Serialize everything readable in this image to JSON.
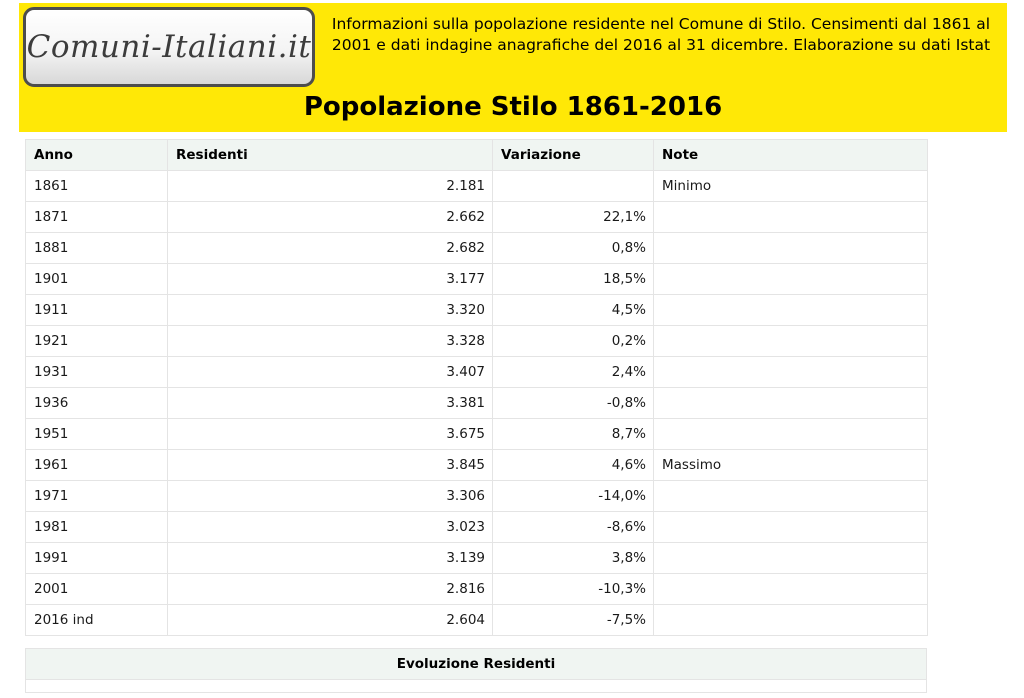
{
  "logo": {
    "text": "Comuni-Italiani.it"
  },
  "banner": {
    "info_text": "Informazioni sulla popolazione residente nel Comune di Stilo. Censimenti dal 1861 al 2001 e dati indagine anagrafiche del 2016 al 31 dicembre. Elaborazione su dati Istat"
  },
  "page_title": "Popolazione Stilo 1861-2016",
  "colors": {
    "banner_bg": "#ffe806",
    "table_header_bg": "#f0f5f2",
    "table_border": "#e4e4e4",
    "text": "#1a1a1a"
  },
  "table": {
    "headers": {
      "anno": "Anno",
      "residenti": "Residenti",
      "variazione": "Variazione",
      "note": "Note"
    },
    "rows": [
      {
        "anno": "1861",
        "residenti": "2.181",
        "variazione": "",
        "note": "Minimo"
      },
      {
        "anno": "1871",
        "residenti": "2.662",
        "variazione": "22,1%",
        "note": ""
      },
      {
        "anno": "1881",
        "residenti": "2.682",
        "variazione": "0,8%",
        "note": ""
      },
      {
        "anno": "1901",
        "residenti": "3.177",
        "variazione": "18,5%",
        "note": ""
      },
      {
        "anno": "1911",
        "residenti": "3.320",
        "variazione": "4,5%",
        "note": ""
      },
      {
        "anno": "1921",
        "residenti": "3.328",
        "variazione": "0,2%",
        "note": ""
      },
      {
        "anno": "1931",
        "residenti": "3.407",
        "variazione": "2,4%",
        "note": ""
      },
      {
        "anno": "1936",
        "residenti": "3.381",
        "variazione": "-0,8%",
        "note": ""
      },
      {
        "anno": "1951",
        "residenti": "3.675",
        "variazione": "8,7%",
        "note": ""
      },
      {
        "anno": "1961",
        "residenti": "3.845",
        "variazione": "4,6%",
        "note": "Massimo"
      },
      {
        "anno": "1971",
        "residenti": "3.306",
        "variazione": "-14,0%",
        "note": ""
      },
      {
        "anno": "1981",
        "residenti": "3.023",
        "variazione": "-8,6%",
        "note": ""
      },
      {
        "anno": "1991",
        "residenti": "3.139",
        "variazione": "3,8%",
        "note": ""
      },
      {
        "anno": "2001",
        "residenti": "2.816",
        "variazione": "-10,3%",
        "note": ""
      },
      {
        "anno": "2016 ind",
        "residenti": "2.604",
        "variazione": "-7,5%",
        "note": ""
      }
    ]
  },
  "section": {
    "title": "Evoluzione Residenti"
  }
}
